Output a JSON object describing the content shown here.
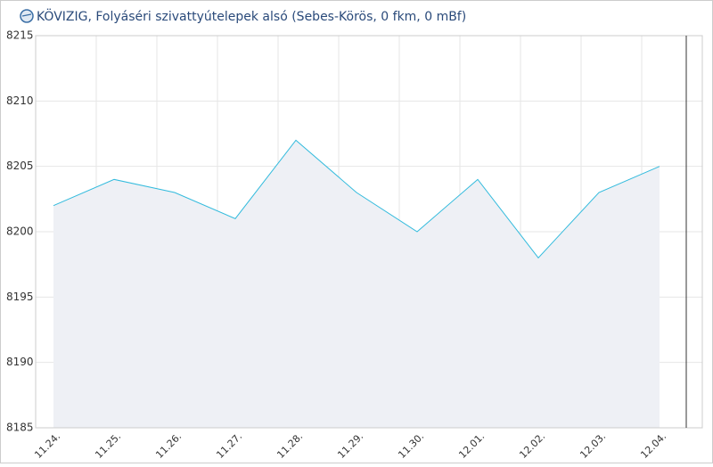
{
  "chart_data": {
    "type": "area",
    "title": "KÖVIZIG, Folyáséri szivattyútelepek alsó (Sebes-Körös, 0 fkm, 0 mBf)",
    "categories": [
      "11.24.",
      "11.25.",
      "11.26.",
      "11.27.",
      "11.28.",
      "11.29.",
      "11.30.",
      "12.01.",
      "12.02.",
      "12.03.",
      "12.04."
    ],
    "values": [
      8202,
      8204,
      8203,
      8201,
      8207,
      8203,
      8200,
      8204,
      8198,
      8203,
      8205
    ],
    "color": "#33bbdd",
    "fill": "#eef0f5",
    "ylim": [
      8185,
      8215
    ],
    "yticks": [
      8185,
      8190,
      8195,
      8200,
      8205,
      8210,
      8215
    ],
    "grid": true
  }
}
